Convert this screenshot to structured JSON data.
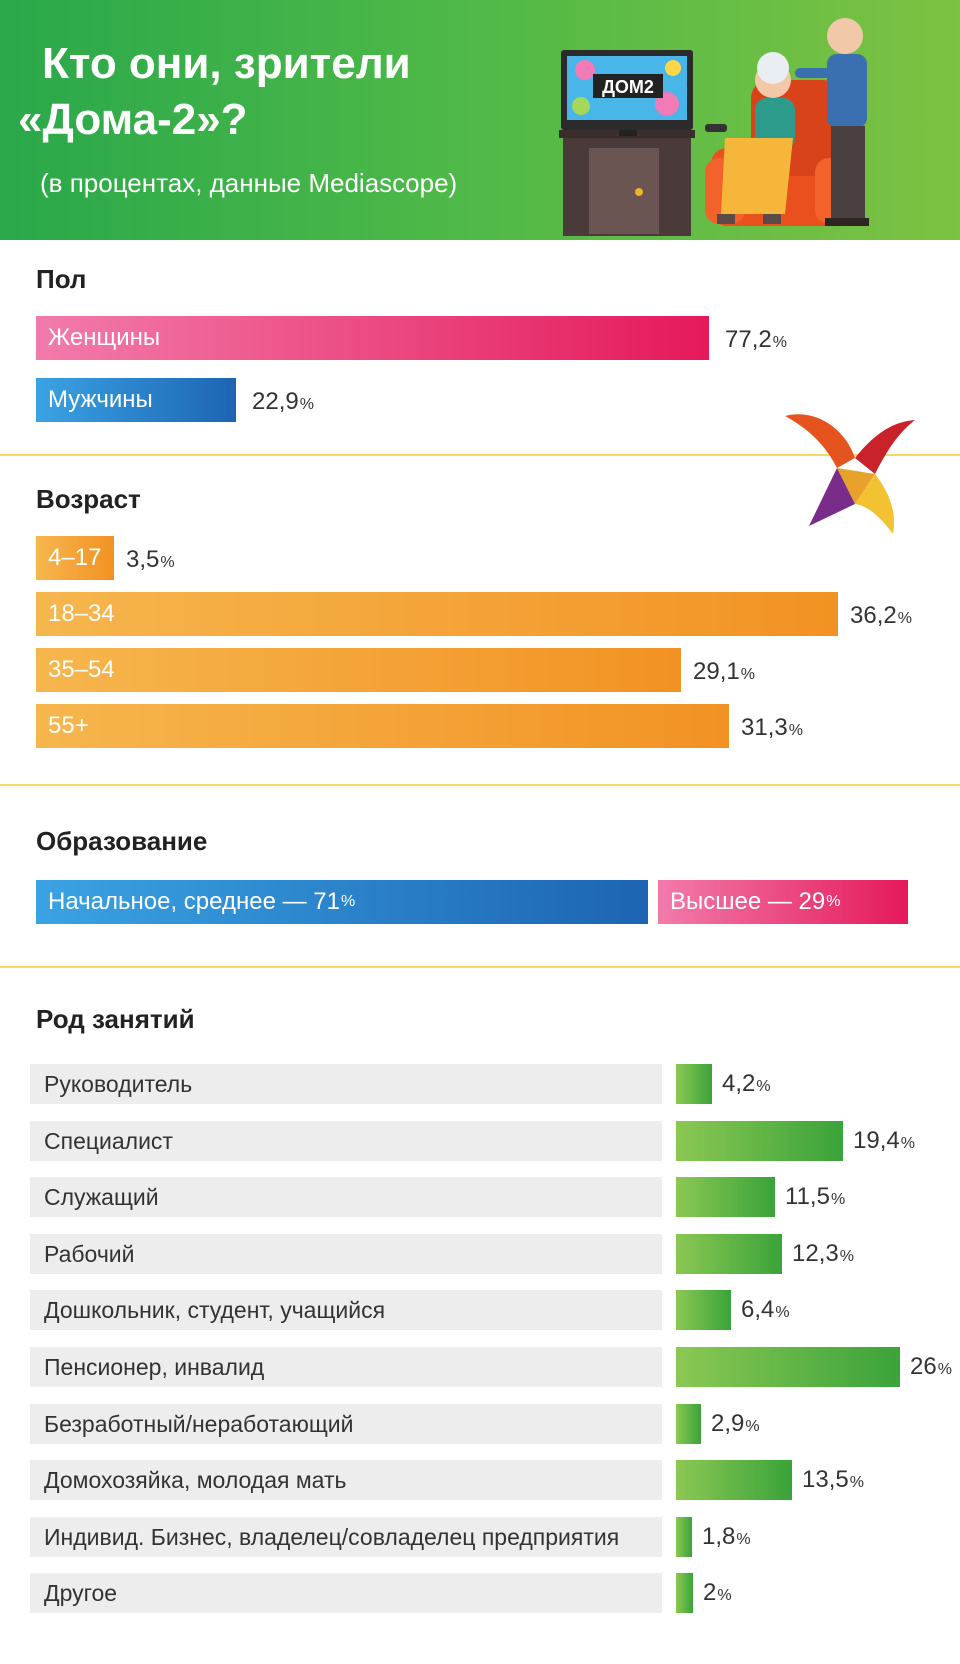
{
  "header": {
    "title_line1": "Кто они, зрители",
    "title_line2": "«Дома-2»?",
    "subtitle": "(в процентах, данные Mediascope)",
    "tv_logo": "ДОМ2"
  },
  "sections": {
    "gender": "Пол",
    "age": "Возраст",
    "education": "Образование",
    "occupation": "Род занятий"
  },
  "colors": {
    "women": "#e5195a",
    "men": "#1d64b3",
    "age": "#f29223",
    "occupation": "#3aa33a",
    "header": "#4cb848"
  },
  "chart_data": [
    {
      "type": "bar",
      "title": "Пол",
      "categories": [
        "Женщины",
        "Мужчины"
      ],
      "values": [
        77.2,
        22.9
      ],
      "value_labels": [
        "77,2",
        "22,9"
      ],
      "unit": "%"
    },
    {
      "type": "bar",
      "title": "Возраст",
      "categories": [
        "4–17",
        "18–34",
        "35–54",
        "55+"
      ],
      "values": [
        3.5,
        36.2,
        29.1,
        31.3
      ],
      "value_labels": [
        "3,5",
        "36,2",
        "29,1",
        "31,3"
      ],
      "unit": "%"
    },
    {
      "type": "bar",
      "title": "Образование",
      "categories": [
        "Начальное, среднее — 71",
        "Высшее — 29"
      ],
      "values": [
        71,
        29
      ],
      "unit": "%"
    },
    {
      "type": "bar",
      "title": "Род занятий",
      "categories": [
        "Руководитель",
        "Специалист",
        "Служащий",
        "Рабочий",
        "Дошкольник, студент, учащийся",
        "Пенсионер, инвалид",
        "Безработный/неработающий",
        "Домохозяйка, молодая мать",
        "Индивид. Бизнес, владелец/совладелец предприятия",
        "Другое"
      ],
      "values": [
        4.2,
        19.4,
        11.5,
        12.3,
        6.4,
        26,
        2.9,
        13.5,
        1.8,
        2
      ],
      "value_labels": [
        "4,2",
        "19,4",
        "11,5",
        "12,3",
        "6,4",
        "26",
        "2,9",
        "13,5",
        "1,8",
        "2"
      ],
      "unit": "%"
    }
  ]
}
